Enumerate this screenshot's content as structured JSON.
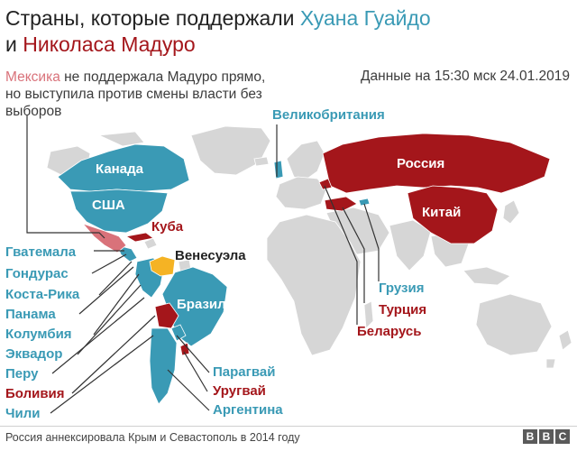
{
  "title": {
    "line1_prefix": "Страны, которые поддержали ",
    "line1_blue": "Хуана Гуайдо",
    "line2_prefix": "и ",
    "line2_red": "Николаса Мадуро"
  },
  "note": {
    "highlight": "Мексика",
    "rest": " не поддержала Мадуро прямо, но выступила против смены власти без выборов"
  },
  "timestamp": "Данные на 15:30 мск 24.01.2019",
  "colors": {
    "guaido": "#3a9ab5",
    "maduro": "#a4161b",
    "mexico": "#d9727a",
    "venezuela": "#f5b324",
    "land": "#d6d6d6"
  },
  "labels": {
    "canada": "Канада",
    "usa": "США",
    "cuba": "Куба",
    "venezuela": "Венесуэла",
    "brazil": "Бразилия",
    "uk": "Великобритания",
    "russia": "Россия",
    "china": "Китай",
    "georgia": "Грузия",
    "turkey": "Турция",
    "belarus": "Беларусь",
    "guatemala": "Гватемала",
    "honduras": "Гондурас",
    "costa_rica": "Коста-Рика",
    "panama": "Панама",
    "colombia": "Колумбия",
    "ecuador": "Эквадор",
    "peru": "Перу",
    "bolivia": "Боливия",
    "chile": "Чили",
    "paraguay": "Парагвай",
    "uruguay": "Уругвай",
    "argentina": "Аргентина"
  },
  "footer": "Россия аннексировала Крым и Севастополь в 2014 году",
  "logo": [
    "B",
    "B",
    "C"
  ]
}
